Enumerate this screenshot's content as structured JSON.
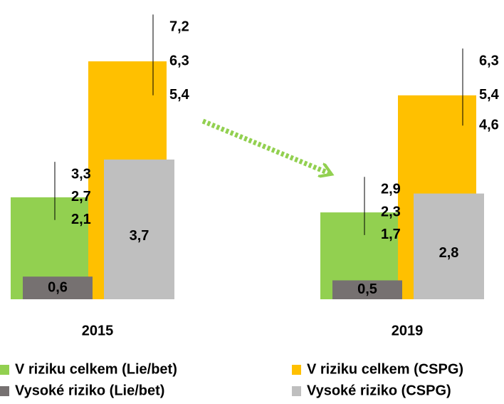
{
  "chart_data": {
    "type": "bar",
    "categories": [
      "2015",
      "2019"
    ],
    "ylim": [
      0,
      8
    ],
    "series": [
      {
        "name": "V riziku celkem (Lie/bet)",
        "color": "#92d050",
        "values": [
          2.7,
          2.3
        ],
        "value_labels": [
          "2,7",
          "2,3"
        ],
        "low": [
          2.1,
          1.7
        ],
        "low_labels": [
          "2,1",
          "1,7"
        ],
        "high": [
          3.3,
          2.9
        ],
        "high_labels": [
          "3,3",
          "2,9"
        ]
      },
      {
        "name": "V riziku celkem (CSPG)",
        "color": "#ffc000",
        "values": [
          6.3,
          5.4
        ],
        "value_labels": [
          "6,3",
          "5,4"
        ],
        "low": [
          5.4,
          4.6
        ],
        "low_labels": [
          "5,4",
          "4,6"
        ],
        "high": [
          7.2,
          6.3
        ],
        "high_labels": [
          "7,2",
          "6,3"
        ]
      },
      {
        "name": "Vysoké riziko (Lie/bet)",
        "color": "#767171",
        "values": [
          0.6,
          0.5
        ],
        "value_labels": [
          "0,6",
          "0,5"
        ]
      },
      {
        "name": "Vysoké riziko (CSPG)",
        "color": "#bfbfbf",
        "values": [
          3.7,
          2.8
        ],
        "value_labels": [
          "3,7",
          "2,8"
        ]
      }
    ]
  }
}
